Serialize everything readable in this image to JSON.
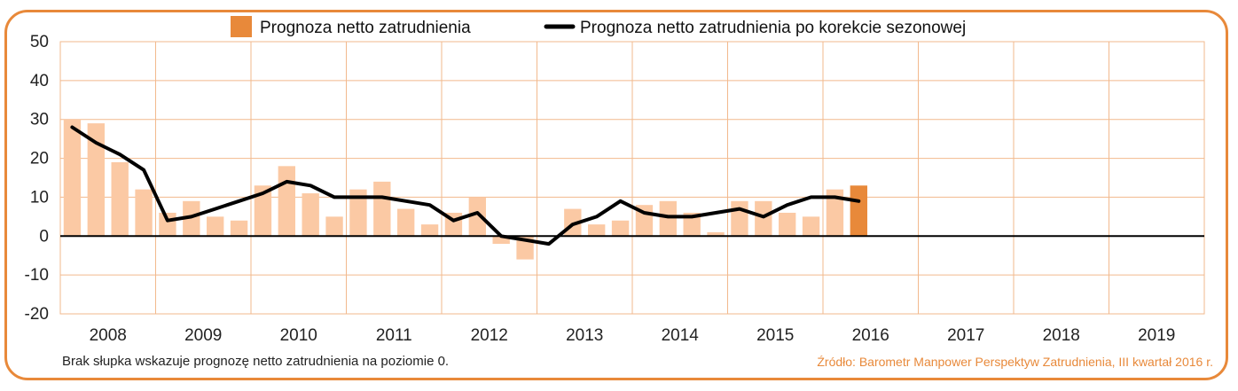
{
  "chart_data": {
    "type": "bar",
    "legend": {
      "placement": "top",
      "bar_label": "Prognoza netto zatrudnienia",
      "line_label": "Prognoza netto zatrudnienia po korekcie sezonowej"
    },
    "ylim": [
      -20,
      50
    ],
    "yticks": [
      -20,
      -10,
      0,
      10,
      20,
      30,
      40,
      50
    ],
    "years": [
      "2008",
      "2009",
      "2010",
      "2011",
      "2012",
      "2013",
      "2014",
      "2015",
      "2016",
      "2017",
      "2018",
      "2019"
    ],
    "quarters_per_year": 4,
    "grid": true,
    "series": [
      {
        "name": "Prognoza netto zatrudnienia",
        "kind": "bar",
        "values": [
          30,
          29,
          19,
          12,
          6,
          9,
          5,
          4,
          13,
          18,
          11,
          5,
          12,
          14,
          7,
          3,
          6,
          10,
          -2,
          -6,
          null,
          7,
          3,
          4,
          8,
          9,
          6,
          1,
          9,
          9,
          6,
          5,
          12,
          13
        ],
        "color": "#fbc9a4",
        "highlight_color": "#e8893a",
        "highlight_index": 33
      },
      {
        "name": "Prognoza netto zatrudnienia po korekcie sezonowej",
        "kind": "line",
        "values": [
          28,
          24,
          21,
          17,
          4,
          5,
          7,
          9,
          11,
          14,
          13,
          10,
          10,
          10,
          9,
          8,
          4,
          6,
          0,
          -1,
          -2,
          3,
          5,
          9,
          6,
          5,
          5,
          6,
          7,
          5,
          8,
          10,
          10,
          9
        ],
        "color": "#000000"
      }
    ]
  },
  "footnote": "Brak słupka wskazuje prognozę netto zatrudnienia na poziomie 0.",
  "source": "Źródło: Barometr Manpower Perspektyw Zatrudnienia, III kwartał 2016 r.",
  "colors": {
    "frame": "#e8893a",
    "grid": "#f2b98d",
    "axis": "#000000"
  }
}
